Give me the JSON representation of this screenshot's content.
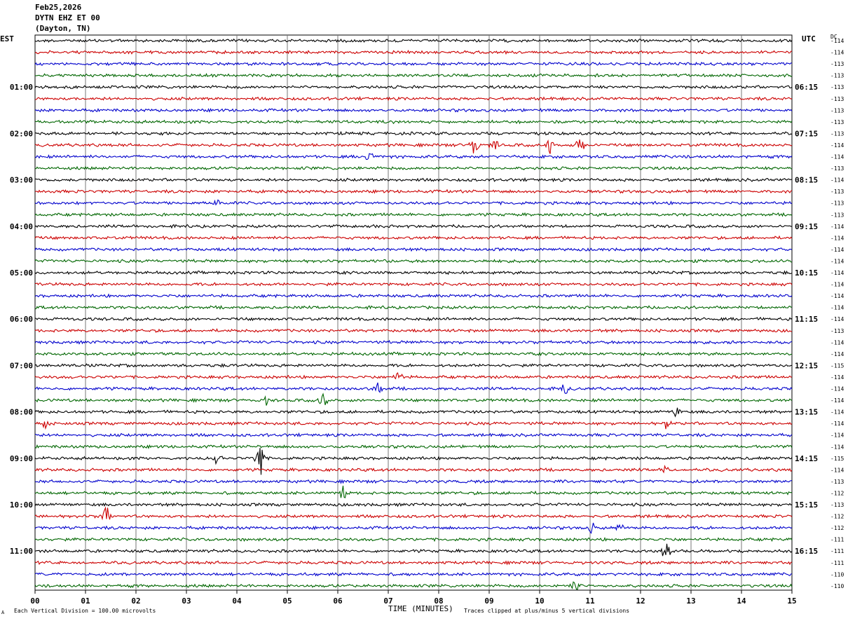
{
  "header": {
    "date": "Feb25,2026",
    "station": "DYTN EHZ ET 00",
    "location": "(Dayton, TN)"
  },
  "left_axis_title": "EST",
  "right_axis_title": "UTC",
  "dc_label": "DC",
  "footer": {
    "scale_note": "Each Vertical Division =  100.00 microvolts",
    "clip_note": "Traces clipped at plus/minus 5 vertical divisions",
    "corner_mark": "A"
  },
  "chart_data": {
    "type": "line",
    "title": "",
    "xlabel": "TIME (MINUTES)",
    "xlim": [
      0,
      15
    ],
    "x_ticks": [
      "00",
      "01",
      "02",
      "03",
      "04",
      "05",
      "06",
      "07",
      "08",
      "09",
      "10",
      "11",
      "12",
      "13",
      "14",
      "15"
    ],
    "rows_per_hour": 4,
    "row_minutes": 15,
    "row_count": 48,
    "trace_colors": [
      "#000000",
      "#cc0000",
      "#0000cc",
      "#006600"
    ],
    "left_hour_labels": [
      {
        "row": 4,
        "label": "01:00"
      },
      {
        "row": 8,
        "label": "02:00"
      },
      {
        "row": 12,
        "label": "03:00"
      },
      {
        "row": 16,
        "label": "04:00"
      },
      {
        "row": 20,
        "label": "05:00"
      },
      {
        "row": 24,
        "label": "06:00"
      },
      {
        "row": 28,
        "label": "07:00"
      },
      {
        "row": 32,
        "label": "08:00"
      },
      {
        "row": 36,
        "label": "09:00"
      },
      {
        "row": 40,
        "label": "10:00"
      },
      {
        "row": 44,
        "label": "11:00"
      }
    ],
    "right_hour_labels": [
      {
        "row": 4,
        "label": "06:15"
      },
      {
        "row": 8,
        "label": "07:15"
      },
      {
        "row": 12,
        "label": "08:15"
      },
      {
        "row": 16,
        "label": "09:15"
      },
      {
        "row": 20,
        "label": "10:15"
      },
      {
        "row": 24,
        "label": "11:15"
      },
      {
        "row": 28,
        "label": "12:15"
      },
      {
        "row": 32,
        "label": "13:15"
      },
      {
        "row": 36,
        "label": "14:15"
      },
      {
        "row": 40,
        "label": "15:15"
      },
      {
        "row": 44,
        "label": "16:15"
      }
    ],
    "dc_offsets": [
      "-114",
      "-114",
      "-113",
      "-113",
      "-113",
      "-113",
      "-113",
      "-113",
      "-113",
      "-114",
      "-114",
      "-113",
      "-114",
      "-113",
      "-113",
      "-113",
      "-114",
      "-114",
      "-114",
      "-114",
      "-114",
      "-114",
      "-114",
      "-114",
      "-114",
      "-113",
      "-114",
      "-114",
      "-115",
      "-114",
      "-114",
      "-114",
      "-114",
      "-114",
      "-114",
      "-114",
      "-115",
      "-114",
      "-113",
      "-112",
      "-113",
      "-112",
      "-112",
      "-111",
      "-111",
      "-111",
      "-110",
      "-110"
    ],
    "events": [
      {
        "row": 9,
        "minute": 8.7,
        "amp": 1.0
      },
      {
        "row": 9,
        "minute": 10.2,
        "amp": 0.8
      },
      {
        "row": 9,
        "minute": 10.8,
        "amp": 0.8
      },
      {
        "row": 9,
        "minute": 9.1,
        "amp": 0.6
      },
      {
        "row": 10,
        "minute": 6.6,
        "amp": 0.7
      },
      {
        "row": 14,
        "minute": 3.6,
        "amp": 0.5
      },
      {
        "row": 29,
        "minute": 7.2,
        "amp": 0.5
      },
      {
        "row": 30,
        "minute": 6.8,
        "amp": 0.5
      },
      {
        "row": 30,
        "minute": 10.5,
        "amp": 0.6
      },
      {
        "row": 31,
        "minute": 4.6,
        "amp": 0.6
      },
      {
        "row": 31,
        "minute": 5.7,
        "amp": 0.7
      },
      {
        "row": 32,
        "minute": 12.7,
        "amp": 0.5
      },
      {
        "row": 33,
        "minute": 0.2,
        "amp": 0.5
      },
      {
        "row": 33,
        "minute": 12.5,
        "amp": 0.5
      },
      {
        "row": 36,
        "minute": 4.45,
        "amp": 2.0
      },
      {
        "row": 36,
        "minute": 3.6,
        "amp": 0.7
      },
      {
        "row": 37,
        "minute": 12.5,
        "amp": 0.5
      },
      {
        "row": 39,
        "minute": 6.1,
        "amp": 0.7
      },
      {
        "row": 41,
        "minute": 1.4,
        "amp": 1.1
      },
      {
        "row": 42,
        "minute": 11.05,
        "amp": 0.6
      },
      {
        "row": 42,
        "minute": 11.6,
        "amp": 0.5
      },
      {
        "row": 44,
        "minute": 12.5,
        "amp": 0.9
      },
      {
        "row": 47,
        "minute": 10.7,
        "amp": 0.5
      }
    ]
  }
}
